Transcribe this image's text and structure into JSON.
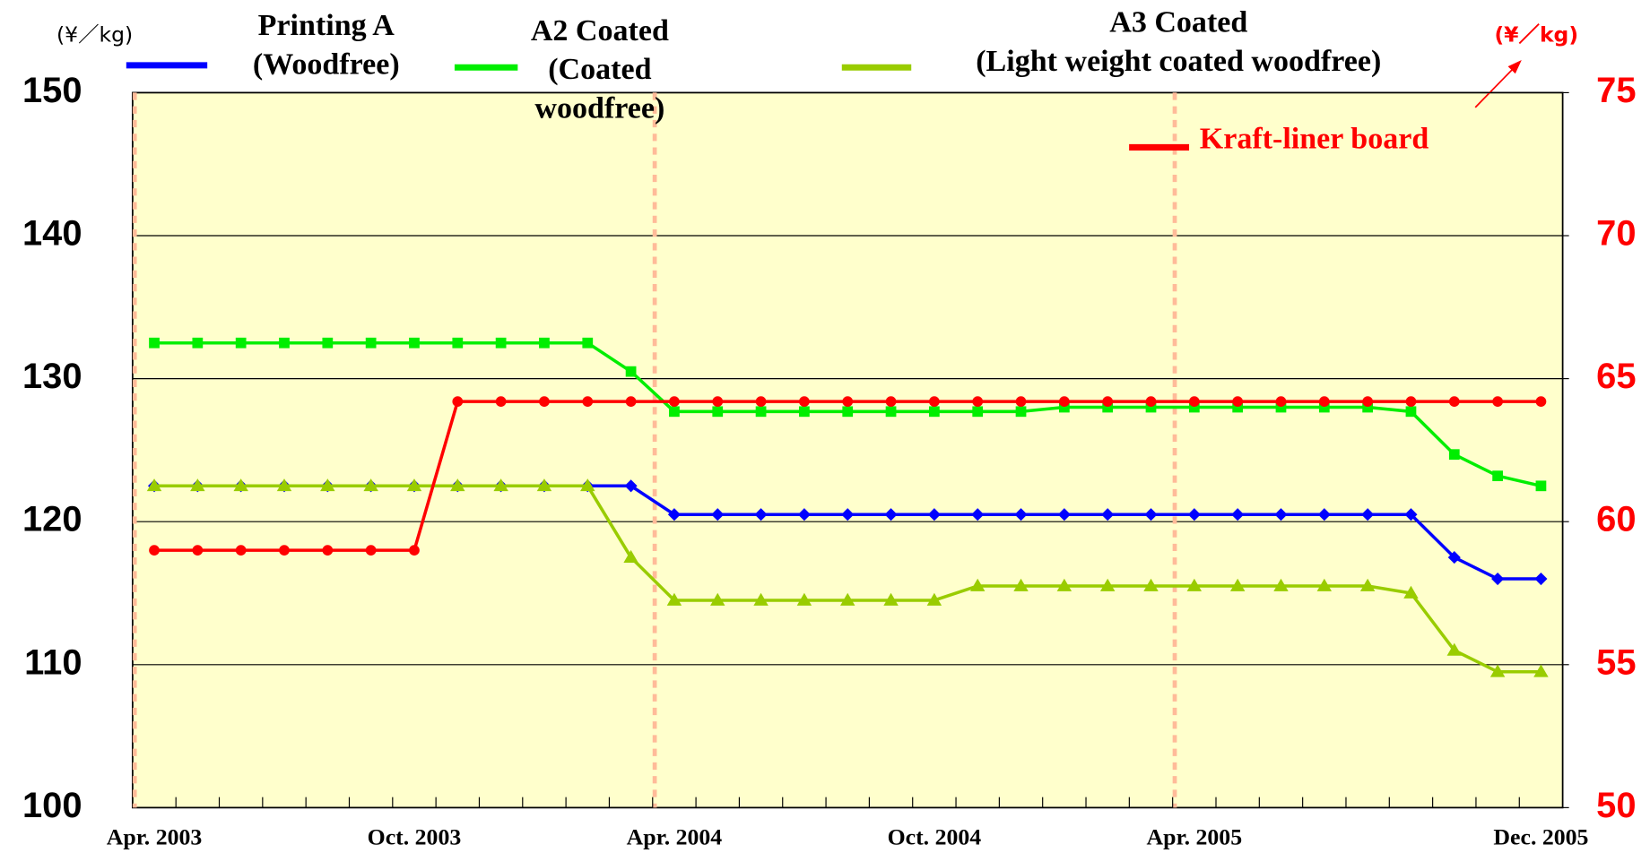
{
  "chart_data": {
    "type": "line",
    "y_label": "(¥／kg)",
    "y2_label": "(¥／kg)",
    "categories": [
      "Apr. 2003",
      null,
      null,
      null,
      null,
      null,
      "Oct. 2003",
      null,
      null,
      null,
      null,
      null,
      "Apr. 2004",
      null,
      null,
      null,
      null,
      null,
      "Oct. 2004",
      null,
      null,
      null,
      null,
      null,
      "Apr. 2005",
      null,
      null,
      null,
      null,
      null,
      null,
      null,
      "Dec. 2005"
    ],
    "ylim": [
      100,
      150
    ],
    "yticks": [
      100,
      110,
      120,
      130,
      140,
      150
    ],
    "y2lim": [
      50,
      75
    ],
    "y2ticks": [
      50,
      55,
      60,
      65,
      70,
      75
    ],
    "grid": true,
    "series": [
      {
        "name": "Printing A\n(Woodfree)",
        "color": "#0000ff",
        "marker": "diamond",
        "values": [
          122.5,
          122.5,
          122.5,
          122.5,
          122.5,
          122.5,
          122.5,
          122.5,
          122.5,
          122.5,
          122.5,
          122.5,
          120.5,
          120.5,
          120.5,
          120.5,
          120.5,
          120.5,
          120.5,
          120.5,
          120.5,
          120.5,
          120.5,
          120.5,
          120.5,
          120.5,
          120.5,
          120.5,
          120.5,
          120.5,
          117.5,
          116,
          116
        ]
      },
      {
        "name": "A2 Coated\n(Coated woodfree)",
        "color": "#00ee00",
        "marker": "square",
        "values": [
          132.5,
          132.5,
          132.5,
          132.5,
          132.5,
          132.5,
          132.5,
          132.5,
          132.5,
          132.5,
          132.5,
          130.5,
          127.7,
          127.7,
          127.7,
          127.7,
          127.7,
          127.7,
          127.7,
          127.7,
          127.7,
          128,
          128,
          128,
          128,
          128,
          128,
          128,
          128,
          127.7,
          124.7,
          123.2,
          122.5
        ]
      },
      {
        "name": "A3 Coated\n(Light weight coated woodfree)",
        "color": "#99cc00",
        "marker": "triangle",
        "values": [
          122.5,
          122.5,
          122.5,
          122.5,
          122.5,
          122.5,
          122.5,
          122.5,
          122.5,
          122.5,
          122.5,
          117.5,
          114.5,
          114.5,
          114.5,
          114.5,
          114.5,
          114.5,
          114.5,
          115.5,
          115.5,
          115.5,
          115.5,
          115.5,
          115.5,
          115.5,
          115.5,
          115.5,
          115.5,
          115,
          111,
          109.5,
          109.5
        ]
      },
      {
        "name": "Kraft-liner board",
        "color": "#ff0000",
        "marker": "circle",
        "axis": "y2",
        "values": [
          59,
          59,
          59,
          59,
          59,
          59,
          59,
          64.2,
          64.2,
          64.2,
          64.2,
          64.2,
          64.2,
          64.2,
          64.2,
          64.2,
          64.2,
          64.2,
          64.2,
          64.2,
          64.2,
          64.2,
          64.2,
          64.2,
          64.2,
          64.2,
          64.2,
          64.2,
          64.2,
          64.2,
          64.2,
          64.2,
          64.2
        ]
      }
    ]
  }
}
